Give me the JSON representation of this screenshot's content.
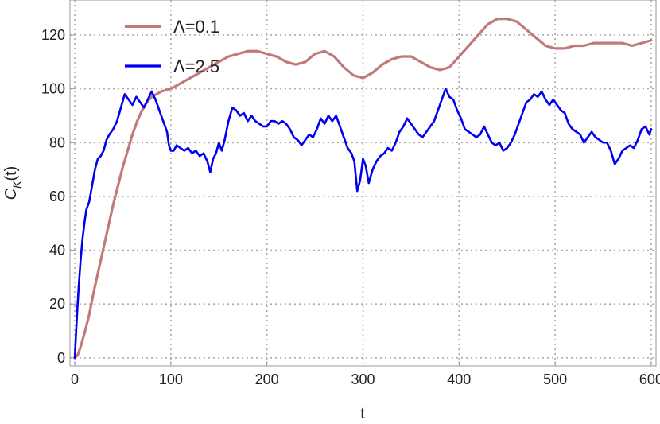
{
  "chart_data": {
    "type": "line",
    "title": "",
    "xlabel": "t",
    "ylabel_base": "C",
    "ylabel_sub": "K",
    "ylabel_arg": "(t)",
    "xlim": [
      -5,
      605
    ],
    "ylim": [
      -3,
      133
    ],
    "xticks": [
      0,
      100,
      200,
      300,
      400,
      500,
      600
    ],
    "yticks": [
      0,
      20,
      40,
      60,
      80,
      100,
      120
    ],
    "grid": true,
    "legend_position": "top-left",
    "series": [
      {
        "name": "Λ=0.1",
        "color": "#c07a7a",
        "points": [
          [
            0,
            0
          ],
          [
            3,
            1
          ],
          [
            6,
            4
          ],
          [
            10,
            9
          ],
          [
            15,
            16
          ],
          [
            20,
            25
          ],
          [
            25,
            33
          ],
          [
            30,
            41
          ],
          [
            35,
            49
          ],
          [
            40,
            57
          ],
          [
            45,
            64
          ],
          [
            50,
            71
          ],
          [
            55,
            77
          ],
          [
            60,
            83
          ],
          [
            65,
            88
          ],
          [
            70,
            92
          ],
          [
            75,
            95
          ],
          [
            80,
            97
          ],
          [
            90,
            99
          ],
          [
            100,
            100
          ],
          [
            110,
            102
          ],
          [
            120,
            104
          ],
          [
            130,
            106
          ],
          [
            140,
            108
          ],
          [
            150,
            110
          ],
          [
            160,
            112
          ],
          [
            170,
            113
          ],
          [
            180,
            114
          ],
          [
            190,
            114
          ],
          [
            200,
            113
          ],
          [
            210,
            112
          ],
          [
            220,
            110
          ],
          [
            230,
            109
          ],
          [
            240,
            110
          ],
          [
            250,
            113
          ],
          [
            260,
            114
          ],
          [
            270,
            112
          ],
          [
            280,
            108
          ],
          [
            290,
            105
          ],
          [
            300,
            104
          ],
          [
            310,
            106
          ],
          [
            320,
            109
          ],
          [
            330,
            111
          ],
          [
            340,
            112
          ],
          [
            350,
            112
          ],
          [
            360,
            110
          ],
          [
            370,
            108
          ],
          [
            380,
            107
          ],
          [
            390,
            108
          ],
          [
            400,
            112
          ],
          [
            410,
            116
          ],
          [
            420,
            120
          ],
          [
            430,
            124
          ],
          [
            440,
            126
          ],
          [
            450,
            126
          ],
          [
            460,
            125
          ],
          [
            470,
            122
          ],
          [
            480,
            119
          ],
          [
            490,
            116
          ],
          [
            500,
            115
          ],
          [
            510,
            115
          ],
          [
            520,
            116
          ],
          [
            530,
            116
          ],
          [
            540,
            117
          ],
          [
            550,
            117
          ],
          [
            560,
            117
          ],
          [
            570,
            117
          ],
          [
            580,
            116
          ],
          [
            590,
            117
          ],
          [
            600,
            118
          ]
        ]
      },
      {
        "name": "Λ=2.5",
        "color": "#0000ee",
        "points": [
          [
            0,
            0
          ],
          [
            2,
            14
          ],
          [
            4,
            26
          ],
          [
            6,
            36
          ],
          [
            8,
            44
          ],
          [
            10,
            50
          ],
          [
            12,
            55
          ],
          [
            15,
            58
          ],
          [
            18,
            64
          ],
          [
            21,
            70
          ],
          [
            24,
            74
          ],
          [
            27,
            75
          ],
          [
            30,
            77
          ],
          [
            33,
            81
          ],
          [
            36,
            83
          ],
          [
            40,
            85
          ],
          [
            44,
            88
          ],
          [
            48,
            93
          ],
          [
            52,
            98
          ],
          [
            56,
            96
          ],
          [
            60,
            94
          ],
          [
            64,
            97
          ],
          [
            68,
            95
          ],
          [
            72,
            93
          ],
          [
            76,
            96
          ],
          [
            80,
            99
          ],
          [
            84,
            96
          ],
          [
            88,
            92
          ],
          [
            92,
            88
          ],
          [
            96,
            84
          ],
          [
            98,
            79
          ],
          [
            100,
            77
          ],
          [
            103,
            77
          ],
          [
            106,
            79
          ],
          [
            110,
            78
          ],
          [
            114,
            77
          ],
          [
            118,
            78
          ],
          [
            122,
            76
          ],
          [
            126,
            77
          ],
          [
            130,
            75
          ],
          [
            134,
            76
          ],
          [
            138,
            73
          ],
          [
            141,
            69
          ],
          [
            144,
            74
          ],
          [
            147,
            76
          ],
          [
            150,
            80
          ],
          [
            153,
            77
          ],
          [
            156,
            81
          ],
          [
            160,
            88
          ],
          [
            164,
            93
          ],
          [
            168,
            92
          ],
          [
            172,
            90
          ],
          [
            176,
            91
          ],
          [
            180,
            88
          ],
          [
            184,
            90
          ],
          [
            188,
            88
          ],
          [
            192,
            87
          ],
          [
            196,
            86
          ],
          [
            200,
            86
          ],
          [
            204,
            88
          ],
          [
            208,
            88
          ],
          [
            212,
            87
          ],
          [
            216,
            88
          ],
          [
            220,
            87
          ],
          [
            224,
            85
          ],
          [
            228,
            82
          ],
          [
            232,
            81
          ],
          [
            236,
            79
          ],
          [
            240,
            81
          ],
          [
            244,
            83
          ],
          [
            248,
            82
          ],
          [
            252,
            85
          ],
          [
            256,
            89
          ],
          [
            260,
            87
          ],
          [
            264,
            90
          ],
          [
            268,
            88
          ],
          [
            272,
            90
          ],
          [
            276,
            86
          ],
          [
            280,
            82
          ],
          [
            284,
            78
          ],
          [
            288,
            76
          ],
          [
            291,
            73
          ],
          [
            294,
            62
          ],
          [
            297,
            66
          ],
          [
            300,
            74
          ],
          [
            303,
            71
          ],
          [
            306,
            65
          ],
          [
            310,
            70
          ],
          [
            314,
            73
          ],
          [
            318,
            75
          ],
          [
            322,
            76
          ],
          [
            326,
            78
          ],
          [
            330,
            77
          ],
          [
            334,
            80
          ],
          [
            338,
            84
          ],
          [
            342,
            86
          ],
          [
            346,
            89
          ],
          [
            350,
            87
          ],
          [
            354,
            85
          ],
          [
            358,
            83
          ],
          [
            362,
            82
          ],
          [
            366,
            84
          ],
          [
            370,
            86
          ],
          [
            374,
            88
          ],
          [
            378,
            92
          ],
          [
            382,
            96
          ],
          [
            386,
            100
          ],
          [
            390,
            97
          ],
          [
            394,
            96
          ],
          [
            398,
            92
          ],
          [
            402,
            89
          ],
          [
            406,
            85
          ],
          [
            410,
            84
          ],
          [
            414,
            83
          ],
          [
            418,
            82
          ],
          [
            422,
            83
          ],
          [
            426,
            86
          ],
          [
            430,
            83
          ],
          [
            434,
            80
          ],
          [
            438,
            79
          ],
          [
            442,
            80
          ],
          [
            446,
            77
          ],
          [
            450,
            78
          ],
          [
            454,
            80
          ],
          [
            458,
            83
          ],
          [
            462,
            87
          ],
          [
            466,
            91
          ],
          [
            470,
            95
          ],
          [
            474,
            96
          ],
          [
            478,
            98
          ],
          [
            482,
            97
          ],
          [
            486,
            99
          ],
          [
            490,
            96
          ],
          [
            494,
            94
          ],
          [
            498,
            96
          ],
          [
            502,
            94
          ],
          [
            506,
            92
          ],
          [
            510,
            91
          ],
          [
            514,
            87
          ],
          [
            518,
            85
          ],
          [
            522,
            84
          ],
          [
            526,
            83
          ],
          [
            530,
            80
          ],
          [
            534,
            82
          ],
          [
            538,
            84
          ],
          [
            542,
            82
          ],
          [
            546,
            81
          ],
          [
            550,
            80
          ],
          [
            554,
            80
          ],
          [
            558,
            77
          ],
          [
            562,
            72
          ],
          [
            566,
            74
          ],
          [
            570,
            77
          ],
          [
            574,
            78
          ],
          [
            578,
            79
          ],
          [
            582,
            78
          ],
          [
            586,
            81
          ],
          [
            590,
            85
          ],
          [
            594,
            86
          ],
          [
            598,
            83
          ],
          [
            600,
            85
          ]
        ]
      }
    ]
  }
}
